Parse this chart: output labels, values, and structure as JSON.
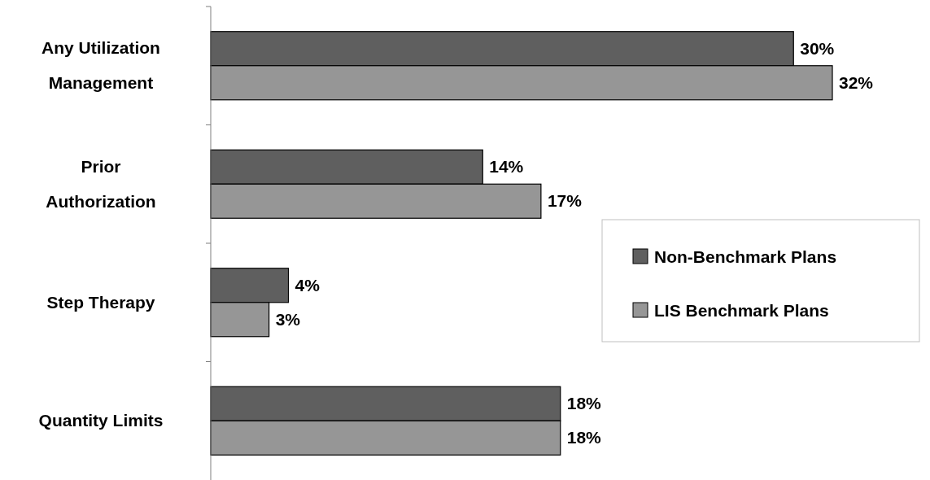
{
  "chart_data": {
    "type": "bar",
    "orientation": "horizontal",
    "categories": [
      "Any Utilization Management",
      "Prior Authorization",
      "Step Therapy",
      "Quantity Limits"
    ],
    "series": [
      {
        "name": "Non-Benchmark Plans",
        "color": "#5f5f5f",
        "values": [
          30,
          14,
          4,
          18
        ],
        "value_labels": [
          "30%",
          "14%",
          "4%",
          "18%"
        ]
      },
      {
        "name": "LIS Benchmark Plans",
        "color": "#969696",
        "values": [
          32,
          17,
          3,
          18
        ],
        "value_labels": [
          "32%",
          "17%",
          "3%",
          "18%"
        ]
      }
    ],
    "legend": "right"
  }
}
